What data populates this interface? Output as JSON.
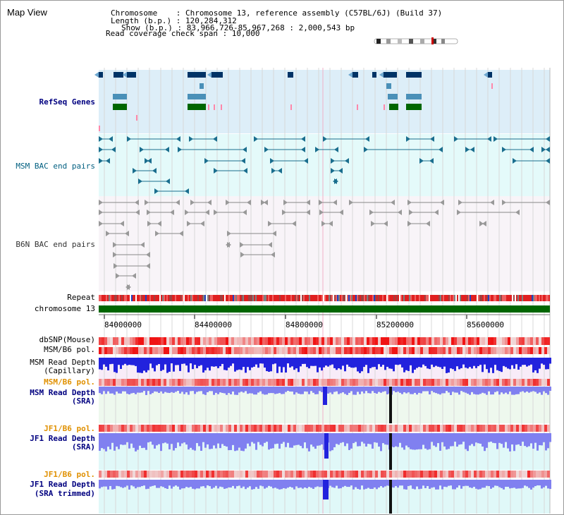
{
  "title": "Map View",
  "info": {
    "line1": "Chromosome    : Chromosome 13, reference assembly (C57BL/6J) (Build 37)",
    "line2": "Length (b.p.) : 120,284,312",
    "line3": "Show (b.p.) : 83,966,726-85,967,268 : 2,000,543 bp",
    "line4": "Read coverage check span : 10,000"
  },
  "tracks": {
    "refseq": "RefSeq Genes",
    "msm_bac": "MSM BAC end pairs",
    "b6n_bac": "B6N BAC end pairs",
    "repeat": "Repeat",
    "chromosome": "chromosome 13",
    "dbsnp": "dbSNP(Mouse)",
    "msm_b6_pol": "MSM/B6 pol.",
    "msm_depth_cap_1": "MSM Read Depth",
    "msm_depth_cap_2": "(Capillary)",
    "msm_b6_pol_2": "MSM/B6 pol.",
    "msm_depth_sra_1": "MSM Read Depth",
    "msm_depth_sra_2": "(SRA)",
    "jf1_b6_pol": "JF1/B6 pol.",
    "jf1_depth_sra_1": "JF1 Read Depth",
    "jf1_depth_sra_2": "(SRA)",
    "jf1_b6_pol_2": "JF1/B6 pol.",
    "jf1_depth_trim_1": "JF1 Read Depth",
    "jf1_depth_trim_2": "(SRA trimmed)"
  },
  "axis": {
    "ticks": [
      "84000000",
      "84400000",
      "84800000",
      "85200000",
      "85600000"
    ]
  },
  "colors": {
    "refseq_dark": "#003366",
    "refseq_mid": "#4A90B8",
    "refseq_green": "#006600",
    "refseq_pink": "#FF88AA",
    "msm_bac": "#1A6E8E",
    "b6n_bac": "#555555",
    "chrom_green": "#006600",
    "depth_blue": "#2222DD",
    "depth_light": "#8080F0",
    "pol_red": "#EE3333"
  }
}
